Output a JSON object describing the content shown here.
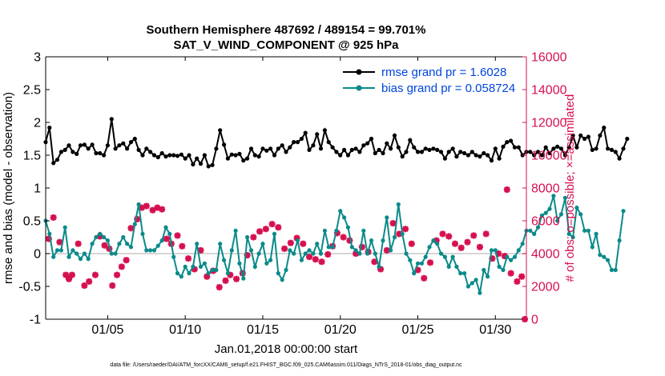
{
  "title_line1": "Southern Hemisphere 487692 / 489154 = 99.701%",
  "title_line2": "SAT_V_WIND_COMPONENT @ 925 hPa",
  "xlabel": "Jan.01,2018 00:00:00 start",
  "footer": "data file: /Users/raeder/DAI/ATM_forcXX/CAM6_setup/f.e21.FHIST_BGC.f09_025.CAM6assim.011/Diags_NTrS_2018-01/obs_diag_output.nc",
  "colors": {
    "rmse": "#000000",
    "bias": "#0a8a8a",
    "obs": "#d6104f",
    "legend_text": "#0044dd",
    "zero_line": "#c8c8c8"
  },
  "chart_data": {
    "type": "line",
    "x_ticks": [
      {
        "day": 5,
        "label": "01/05"
      },
      {
        "day": 10,
        "label": "01/10"
      },
      {
        "day": 15,
        "label": "01/15"
      },
      {
        "day": 20,
        "label": "01/20"
      },
      {
        "day": 25,
        "label": "01/25"
      },
      {
        "day": 30,
        "label": "01/30"
      }
    ],
    "xlim": [
      1,
      32
    ],
    "y_left": {
      "label": "rmse and bias (model - observation)",
      "lim": [
        -1,
        3
      ],
      "ticks": [
        "-1",
        "-0.5",
        "0",
        "0.5",
        "1",
        "1.5",
        "2",
        "2.5",
        "3"
      ]
    },
    "y_right": {
      "label": "# of obs: o=possible; ×=assimilated",
      "lim": [
        0,
        16000
      ],
      "ticks": [
        "0",
        "2000",
        "4000",
        "6000",
        "8000",
        "10000",
        "12000",
        "14000",
        "16000"
      ]
    },
    "legend": [
      {
        "name": "rmse",
        "label": "rmse grand pr = 1.6028"
      },
      {
        "name": "bias",
        "label": "bias grand pr = 0.058724"
      }
    ],
    "series": [
      {
        "name": "rmse",
        "x_start": 1.0,
        "dx": 0.25,
        "values": [
          1.7,
          1.92,
          1.38,
          1.43,
          1.55,
          1.58,
          1.65,
          1.55,
          1.52,
          1.65,
          1.66,
          1.6,
          1.66,
          1.53,
          1.53,
          1.5,
          1.65,
          2.05,
          1.6,
          1.65,
          1.68,
          1.6,
          1.7,
          1.75,
          1.58,
          1.5,
          1.6,
          1.55,
          1.5,
          1.47,
          1.53,
          1.48,
          1.5,
          1.5,
          1.49,
          1.51,
          1.45,
          1.5,
          1.36,
          1.45,
          1.37,
          1.5,
          1.33,
          1.35,
          1.6,
          1.88,
          1.66,
          1.45,
          1.51,
          1.5,
          1.52,
          1.42,
          1.45,
          1.6,
          1.5,
          1.48,
          1.6,
          1.57,
          1.6,
          1.5,
          1.6,
          1.65,
          1.55,
          1.62,
          1.7,
          1.7,
          1.75,
          1.84,
          1.58,
          1.65,
          1.82,
          1.6,
          1.88,
          1.7,
          1.62,
          1.55,
          1.5,
          1.58,
          1.5,
          1.58,
          1.6,
          1.55,
          1.65,
          1.68,
          1.75,
          1.53,
          1.58,
          1.53,
          1.68,
          1.6,
          1.8,
          1.62,
          1.48,
          1.55,
          1.73,
          1.62,
          1.55,
          1.55,
          1.6,
          1.58,
          1.6,
          1.58,
          1.55,
          1.45,
          1.55,
          1.6,
          1.48,
          1.55,
          1.53,
          1.5,
          1.55,
          1.5,
          1.48,
          1.53,
          1.5,
          1.42,
          1.6,
          1.45,
          1.63,
          1.7,
          1.72,
          1.62,
          1.62,
          1.5,
          1.55,
          1.55,
          1.5,
          1.55,
          1.5,
          1.62,
          1.53,
          1.6,
          1.63,
          1.6,
          1.5,
          1.62,
          1.8,
          1.62,
          1.8,
          1.75,
          1.78,
          1.58,
          1.6,
          1.8,
          1.92,
          1.6,
          1.58,
          1.55,
          1.45,
          1.6,
          1.75
        ]
      },
      {
        "name": "bias",
        "x_start": 1.0,
        "dx": 0.25,
        "values": [
          0.5,
          0.3,
          -0.05,
          0.05,
          0.05,
          0.4,
          -0.05,
          0.05,
          0.0,
          -0.08,
          0.0,
          -0.08,
          0.15,
          0.25,
          0.3,
          0.25,
          0.2,
          0.0,
          0.0,
          0.15,
          0.25,
          0.15,
          0.1,
          0.45,
          0.75,
          0.3,
          0.05,
          0.05,
          0.05,
          0.12,
          0.2,
          0.4,
          0.3,
          -0.05,
          -0.3,
          -0.35,
          -0.2,
          -0.3,
          -0.2,
          0.15,
          -0.2,
          -0.15,
          -0.3,
          -0.25,
          -0.25,
          0.15,
          -0.1,
          -0.3,
          0.05,
          0.35,
          -0.15,
          -0.38,
          0.25,
          0.05,
          -0.2,
          0.0,
          0.15,
          -0.15,
          -0.1,
          0.3,
          -0.3,
          -0.4,
          -0.25,
          0.05,
          0.0,
          0.2,
          -0.1,
          0.0,
          0.05,
          0.0,
          0.15,
          0.0,
          0.35,
          0.1,
          0.1,
          0.35,
          0.65,
          0.55,
          0.4,
          0.1,
          0.05,
          0.0,
          0.35,
          0.0,
          0.2,
          0.0,
          -0.2,
          0.2,
          0.55,
          0.05,
          0.25,
          0.75,
          0.3,
          0.0,
          -0.1,
          -0.3,
          -0.15,
          -0.15,
          -0.05,
          0.1,
          0.2,
          0.15,
          0.0,
          -0.05,
          -0.2,
          -0.05,
          -0.2,
          -0.3,
          -0.3,
          -0.5,
          -0.45,
          -0.4,
          -0.6,
          -0.25,
          -0.35,
          0.05,
          0.05,
          -0.2,
          -0.25,
          -0.05,
          -0.1,
          -0.05,
          0.05,
          0.15,
          0.35,
          0.35,
          0.3,
          0.4,
          0.58,
          0.62,
          0.68,
          0.88,
          0.5,
          0.6,
          0.85,
          0.3,
          0.25,
          0.7,
          0.6,
          0.35,
          0.35,
          0.1,
          0.3,
          -0.02,
          -0.05,
          -0.1,
          -0.25,
          -0.25,
          0.2,
          0.65
        ]
      },
      {
        "name": "obs",
        "points": [
          [
            1.2,
            4900
          ],
          [
            1.5,
            6200
          ],
          [
            1.9,
            4700
          ],
          [
            2.3,
            2700
          ],
          [
            2.5,
            2450
          ],
          [
            2.7,
            2700
          ],
          [
            3.1,
            4600
          ],
          [
            3.5,
            2050
          ],
          [
            3.8,
            2300
          ],
          [
            4.2,
            2700
          ],
          [
            4.5,
            5050
          ],
          [
            4.8,
            4500
          ],
          [
            5.1,
            4300
          ],
          [
            5.3,
            2050
          ],
          [
            5.6,
            2700
          ],
          [
            5.9,
            3200
          ],
          [
            6.2,
            3600
          ],
          [
            6.5,
            5550
          ],
          [
            6.9,
            6100
          ],
          [
            7.2,
            6800
          ],
          [
            7.5,
            6900
          ],
          [
            7.9,
            6650
          ],
          [
            8.2,
            6800
          ],
          [
            8.5,
            6700
          ],
          [
            8.8,
            4900
          ],
          [
            9.1,
            4600
          ],
          [
            9.5,
            5100
          ],
          [
            9.8,
            4450
          ],
          [
            10.2,
            3700
          ],
          [
            10.6,
            3050
          ],
          [
            11.0,
            4200
          ],
          [
            11.4,
            2600
          ],
          [
            11.8,
            2950
          ],
          [
            12.2,
            1950
          ],
          [
            12.6,
            2350
          ],
          [
            12.9,
            2700
          ],
          [
            13.3,
            2450
          ],
          [
            13.7,
            2800
          ],
          [
            14.0,
            3900
          ],
          [
            14.4,
            5000
          ],
          [
            14.8,
            5350
          ],
          [
            15.2,
            5500
          ],
          [
            15.6,
            5800
          ],
          [
            16.0,
            5600
          ],
          [
            16.4,
            4300
          ],
          [
            16.8,
            4650
          ],
          [
            17.2,
            4950
          ],
          [
            17.6,
            4600
          ],
          [
            18.0,
            3800
          ],
          [
            18.4,
            3650
          ],
          [
            18.8,
            3500
          ],
          [
            19.2,
            3950
          ],
          [
            19.5,
            4450
          ],
          [
            19.8,
            5250
          ],
          [
            20.2,
            5000
          ],
          [
            20.6,
            4800
          ],
          [
            21.0,
            4000
          ],
          [
            21.4,
            4400
          ],
          [
            21.8,
            4100
          ],
          [
            22.2,
            3500
          ],
          [
            22.6,
            3050
          ],
          [
            23.0,
            4200
          ],
          [
            23.4,
            5850
          ],
          [
            23.8,
            5200
          ],
          [
            24.2,
            5500
          ],
          [
            24.6,
            4600
          ],
          [
            25.0,
            3000
          ],
          [
            25.4,
            2500
          ],
          [
            25.8,
            3450
          ],
          [
            26.2,
            4800
          ],
          [
            26.6,
            5200
          ],
          [
            27.0,
            5050
          ],
          [
            27.4,
            4600
          ],
          [
            27.8,
            4350
          ],
          [
            28.2,
            4700
          ],
          [
            28.6,
            5100
          ],
          [
            29.0,
            4400
          ],
          [
            29.4,
            5200
          ],
          [
            29.8,
            3700
          ],
          [
            30.2,
            4000
          ],
          [
            30.6,
            3850
          ],
          [
            31.0,
            2800
          ],
          [
            31.4,
            2300
          ],
          [
            31.7,
            2600
          ],
          [
            30.75,
            7900
          ],
          [
            31.9,
            0
          ]
        ]
      }
    ]
  }
}
